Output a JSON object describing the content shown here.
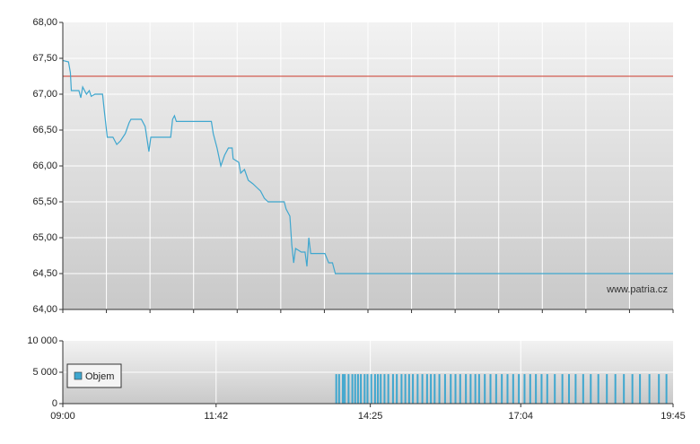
{
  "chart_data": [
    {
      "type": "line",
      "xlim": [
        540,
        1185
      ],
      "ylim": [
        64,
        68
      ],
      "yticks": [
        {
          "value": 64,
          "label": "64,00"
        },
        {
          "value": 64.5,
          "label": "64,50"
        },
        {
          "value": 65,
          "label": "65,00"
        },
        {
          "value": 65.5,
          "label": "65,50"
        },
        {
          "value": 66,
          "label": "66,00"
        },
        {
          "value": 66.5,
          "label": "66,50"
        },
        {
          "value": 67,
          "label": "67,00"
        },
        {
          "value": 67.5,
          "label": "67,50"
        },
        {
          "value": 68,
          "label": "68,00"
        }
      ],
      "grid": true,
      "color": "#3fa7cf",
      "reference_line": {
        "value": 67.25,
        "color": "#cc3a2a"
      },
      "watermark": "www.patria.cz",
      "x": [
        540,
        546,
        548,
        549,
        557,
        559,
        561,
        565,
        568,
        570,
        574,
        582,
        584,
        587,
        593,
        597,
        601,
        606,
        610,
        612,
        623,
        627,
        631,
        633,
        654,
        656,
        658,
        660,
        697,
        699,
        703,
        707,
        711,
        715,
        719,
        720,
        726,
        728,
        732,
        736,
        741,
        745,
        749,
        753,
        757,
        774,
        776,
        780,
        782,
        784,
        786,
        792,
        796,
        798,
        800,
        802,
        817,
        821,
        825,
        828,
        1185
      ],
      "values": [
        67.47,
        67.45,
        67.3,
        67.05,
        67.05,
        66.95,
        67.1,
        67.0,
        67.05,
        66.97,
        67.0,
        67.0,
        66.75,
        66.4,
        66.4,
        66.3,
        66.35,
        66.45,
        66.6,
        66.65,
        66.65,
        66.55,
        66.2,
        66.4,
        66.4,
        66.65,
        66.7,
        66.62,
        66.62,
        66.45,
        66.25,
        66.0,
        66.15,
        66.25,
        66.25,
        66.1,
        66.05,
        65.9,
        65.95,
        65.8,
        65.75,
        65.7,
        65.65,
        65.55,
        65.5,
        65.5,
        65.4,
        65.3,
        64.9,
        64.65,
        64.85,
        64.8,
        64.8,
        64.6,
        65.0,
        64.78,
        64.78,
        64.65,
        64.65,
        64.5,
        64.5
      ]
    },
    {
      "type": "bar",
      "xlim": [
        540,
        1185
      ],
      "xticks": [
        {
          "value": 540,
          "label": "09:00"
        },
        {
          "value": 702,
          "label": "11:42"
        },
        {
          "value": 865,
          "label": "14:25"
        },
        {
          "value": 1024,
          "label": "17:04"
        },
        {
          "value": 1185,
          "label": "19:45"
        }
      ],
      "ylim": [
        0,
        10000
      ],
      "yticks": [
        0,
        {
          "value": 5000,
          "label": "5 000"
        },
        {
          "value": 10000,
          "label": "10 000"
        }
      ],
      "grid": true,
      "legend": "top-left",
      "series": [
        {
          "name": "Objem",
          "color": "#3fa7cf",
          "x": [
            829,
            832,
            836,
            838,
            842,
            846,
            849,
            852,
            855,
            859,
            862,
            866,
            870,
            873,
            876,
            880,
            884,
            889,
            893,
            898,
            902,
            906,
            910,
            915,
            920,
            925,
            929,
            933,
            938,
            944,
            950,
            955,
            960,
            966,
            971,
            976,
            980,
            986,
            992,
            998,
            1004,
            1010,
            1016,
            1022,
            1028,
            1034,
            1040,
            1046,
            1052,
            1060,
            1068,
            1075,
            1082,
            1090,
            1098,
            1106,
            1115,
            1124,
            1133,
            1142,
            1150,
            1160,
            1170,
            1178
          ],
          "values": [
            4700,
            4700,
            4700,
            4700,
            4700,
            4700,
            4700,
            4700,
            4700,
            4700,
            4700,
            4700,
            4700,
            4700,
            4700,
            4700,
            4700,
            4700,
            4700,
            4700,
            4700,
            4700,
            4700,
            4700,
            4700,
            4700,
            4700,
            4700,
            4700,
            4700,
            4700,
            4700,
            4700,
            4700,
            4700,
            4700,
            4700,
            4700,
            4700,
            4700,
            4700,
            4700,
            4700,
            4700,
            4700,
            4700,
            4700,
            4700,
            4700,
            4700,
            4700,
            4700,
            4700,
            4700,
            4700,
            4700,
            4700,
            4700,
            4700,
            4700,
            4700,
            4700,
            4700,
            4700
          ]
        }
      ]
    }
  ]
}
